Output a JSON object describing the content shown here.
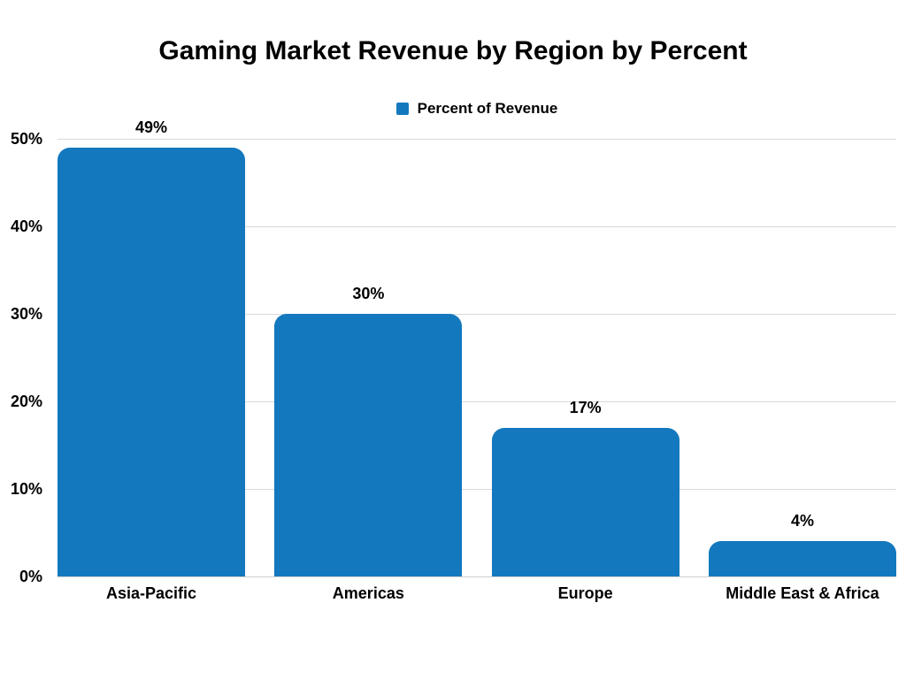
{
  "legend": {
    "label": "Percent of Revenue"
  },
  "chart_data": {
    "type": "bar",
    "title": "Gaming Market Revenue by Region by Percent",
    "categories": [
      "Asia-Pacific",
      "Americas",
      "Europe",
      "Middle East & Africa"
    ],
    "series": [
      {
        "name": "Percent of Revenue",
        "values": [
          49,
          30,
          17,
          4
        ]
      }
    ],
    "value_labels": [
      "49%",
      "30%",
      "17%",
      "4%"
    ],
    "xlabel": "",
    "ylabel": "",
    "ylim": [
      0,
      50
    ],
    "ytick_values": [
      0,
      10,
      20,
      30,
      40,
      50
    ],
    "yticks": [
      "0%",
      "10%",
      "20%",
      "30%",
      "40%",
      "50%"
    ],
    "grid": "horizontal",
    "legend_position": "top",
    "bar_color": "#1378be",
    "gridline_color": "#d9d9d9",
    "axis_line_color": "#d0d0d0",
    "text_color": "#000000",
    "background_color": "#ffffff"
  }
}
